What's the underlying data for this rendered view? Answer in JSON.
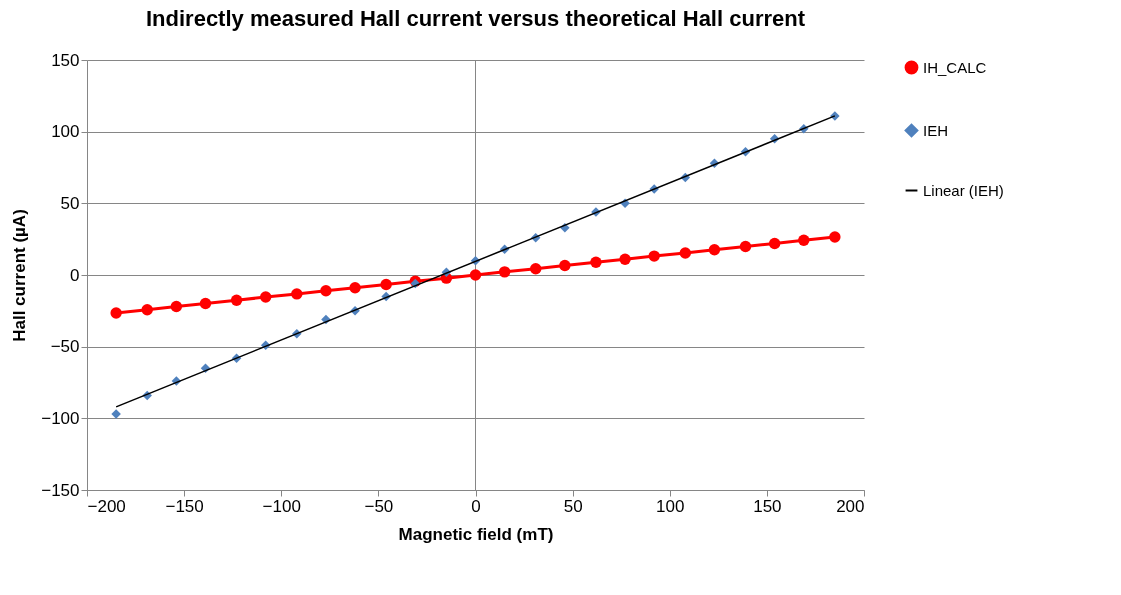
{
  "chart_data": {
    "type": "line",
    "title": "Indirectly measured Hall current versus theoretical Hall current",
    "xlabel": "Magnetic field (mT)",
    "ylabel": "Hall current (µA)",
    "x": [
      -185,
      -169,
      -154,
      -139,
      -123,
      -108,
      -92,
      -77,
      -62,
      -46,
      -31,
      -15,
      0,
      15,
      31,
      46,
      62,
      77,
      92,
      108,
      123,
      139,
      154,
      169,
      185
    ],
    "series": [
      {
        "name": "IH_CALC",
        "type": "line",
        "marker": "circle",
        "color": "#ff0000",
        "values": [
          -26.5,
          -24.2,
          -22,
          -19.9,
          -17.6,
          -15.4,
          -13.2,
          -11,
          -8.9,
          -6.6,
          -4.4,
          -2.2,
          0,
          2.2,
          4.4,
          6.6,
          8.9,
          11,
          13.2,
          15.4,
          17.6,
          19.9,
          22,
          24.2,
          26.5
        ]
      },
      {
        "name": "IEH",
        "type": "scatter",
        "marker": "diamond",
        "color": "#4f81bd",
        "values": [
          -97,
          -84,
          -74,
          -65,
          -58,
          -49,
          -41,
          -31,
          -25,
          -15,
          -6,
          2,
          10,
          18,
          26,
          33,
          44,
          50,
          60,
          68,
          78,
          86,
          95,
          102,
          111
        ]
      },
      {
        "name": "Linear (IEH)",
        "type": "line",
        "marker": "none",
        "color": "#000000",
        "x": [
          -185,
          185
        ],
        "values": [
          -92,
          111
        ]
      }
    ],
    "xlim": [
      -200,
      200
    ],
    "xticks": [
      -200,
      -150,
      -100,
      -50,
      0,
      50,
      100,
      150,
      200
    ],
    "ylim": [
      -150,
      150
    ],
    "yticks": [
      -150,
      -100,
      -50,
      0,
      50,
      100,
      150
    ],
    "grid": "y",
    "legend": "right",
    "ref_lines": [
      {
        "axis": "x",
        "value": 0,
        "color": "#868686"
      }
    ]
  }
}
